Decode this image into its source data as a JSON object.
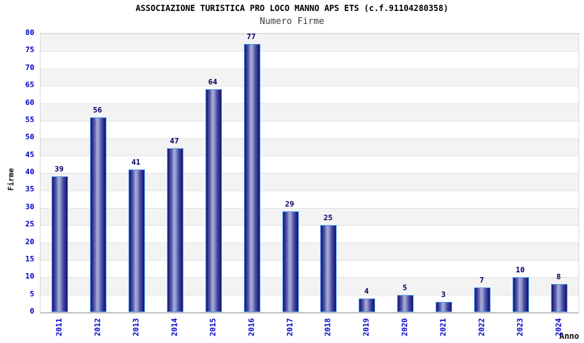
{
  "header": {
    "title": "ASSOCIAZIONE TURISTICA PRO LOCO MANNO APS ETS (c.f.91104280358)",
    "subtitle": "Numero Firme"
  },
  "axes": {
    "ylabel": "Firme",
    "xlabel": "Anno"
  },
  "chart_data": {
    "type": "bar",
    "title": "ASSOCIAZIONE TURISTICA PRO LOCO MANNO APS ETS (c.f.91104280358)",
    "subtitle": "Numero Firme",
    "xlabel": "Anno",
    "ylabel": "Firme",
    "categories": [
      "2011",
      "2012",
      "2013",
      "2014",
      "2015",
      "2016",
      "2017",
      "2018",
      "2019",
      "2020",
      "2021",
      "2022",
      "2023",
      "2024"
    ],
    "values": [
      39,
      56,
      41,
      47,
      64,
      77,
      29,
      25,
      4,
      5,
      3,
      7,
      10,
      8
    ],
    "ylim": [
      0,
      80
    ],
    "ytick_step": 5,
    "grid": "horizontal-bands-alternating",
    "legend": "none",
    "bar_value_labels": true,
    "x_tick_rotation_deg": 90,
    "colors": {
      "bar_dark": "#17177a",
      "bar_mid": "#4a4da5",
      "bar_light": "#a9aed8",
      "bar_border": "#55a0ee",
      "tick_label": "#0000cc",
      "value_label": "#000066",
      "band_gray": "#f3f3f3",
      "band_white": "#ffffff",
      "gridline": "#e0e0e0",
      "plot_border": "#d9d9d9",
      "axis_line": "#c2c2c2",
      "title_color": "#000000",
      "subtitle_color": "#3c3c3c"
    }
  }
}
